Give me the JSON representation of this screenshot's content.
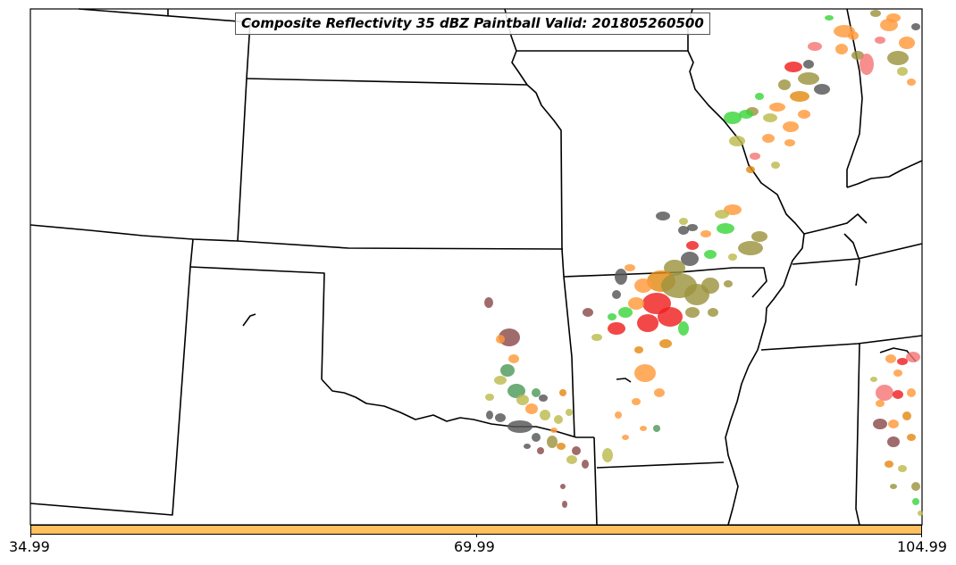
{
  "title": "Composite Reflectivity 35 dBZ Paintball Valid: 201805260500",
  "map": {
    "projection_region": "Central United States",
    "states_drawn": [
      "Colorado",
      "Kansas",
      "Nebraska",
      "Iowa",
      "Missouri",
      "Illinois",
      "Oklahoma",
      "Arkansas",
      "Texas",
      "New Mexico",
      "Tennessee",
      "Kentucky",
      "Mississippi",
      "Alabama",
      "Indiana"
    ],
    "border_color": "#000000",
    "background_color": "#ffffff"
  },
  "paintball_colors": [
    "#ef2020",
    "#f57676",
    "#ff9a3c",
    "#e38a12",
    "#9c9440",
    "#bcbb4e",
    "#3cd63c",
    "#4e9a5a",
    "#555555",
    "#8b4a4a"
  ],
  "colorbar": {
    "color": "#ffc060",
    "ticks": [
      "34.99",
      "69.99",
      "104.99"
    ]
  }
}
